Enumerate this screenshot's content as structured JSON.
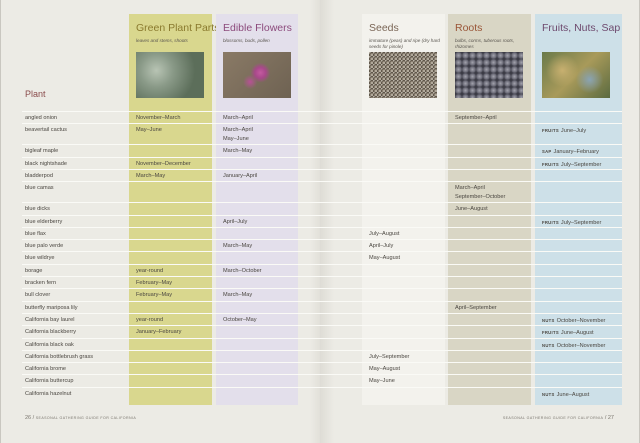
{
  "header": {
    "plant_label": "Plant"
  },
  "columns": [
    {
      "key": "green",
      "title": "Green Plant Parts",
      "subtitle": "leaves and stems, shoots",
      "color": "#d9d78e",
      "title_color": "#8a7a2e",
      "image": "leaves-photo"
    },
    {
      "key": "flowers",
      "title": "Edible Flowers",
      "subtitle": "blossoms, buds, pollen",
      "color": "#e3dfeb",
      "title_color": "#8c4a7c",
      "image": "pink-flower-photo"
    },
    {
      "key": "seeds",
      "title": "Seeds",
      "subtitle": "immature (peas) and ripe (dry hard seeds for pinole)",
      "color": "#f3f2ed",
      "title_color": "#7a6656",
      "image": "seeds-photo"
    },
    {
      "key": "roots",
      "title": "Roots",
      "subtitle": "bulbs, corms, tuberous roots, rhizomes",
      "color": "#d9d6c5",
      "title_color": "#9a5638",
      "image": "roots-photo"
    },
    {
      "key": "fruits",
      "title": "Fruits, Nuts, Sap",
      "subtitle": "",
      "color": "#cde0e8",
      "title_color": "#6e4a6e",
      "image": "fruit-leaves-photo"
    }
  ],
  "rows": [
    {
      "plant": "angled onion",
      "green": "November–March",
      "flowers": "March–April",
      "roots": "September–April"
    },
    {
      "plant": "beavertail cactus",
      "green": "May–June",
      "flowers": "March–April\nMay–June",
      "fruits": {
        "tag": "FRUITS",
        "text": "June–July"
      }
    },
    {
      "plant": "bigleaf maple",
      "flowers": "March–May",
      "fruits": {
        "tag": "SAP",
        "text": "January–February"
      }
    },
    {
      "plant": "black nightshade",
      "green": "November–December",
      "fruits": {
        "tag": "FRUITS",
        "text": "July–September"
      }
    },
    {
      "plant": "bladderpod",
      "green": "March–May",
      "flowers": "January–April"
    },
    {
      "plant": "blue camas",
      "roots": "March–April\nSeptember–October"
    },
    {
      "plant": "blue dicks",
      "roots": "June–August"
    },
    {
      "plant": "blue elderberry",
      "flowers": "April–July",
      "fruits": {
        "tag": "FRUITS",
        "text": "July–September"
      }
    },
    {
      "plant": "blue flax",
      "seeds": "July–August"
    },
    {
      "plant": "blue palo verde",
      "flowers": "March–May",
      "seeds": "April–July"
    },
    {
      "plant": "blue wildrye",
      "seeds": "May–August"
    },
    {
      "plant": "borage",
      "green": "year-round",
      "flowers": "March–October"
    },
    {
      "plant": "bracken fern",
      "green": "February–May"
    },
    {
      "plant": "bull clover",
      "green": "February–May",
      "flowers": "March–May"
    },
    {
      "plant": "butterfly mariposa lily",
      "roots": "April–September"
    },
    {
      "plant": "California bay laurel",
      "green": "year-round",
      "flowers": "October–May",
      "fruits": {
        "tag": "NUTS",
        "text": "October–November"
      }
    },
    {
      "plant": "California blackberry",
      "green": "January–February",
      "fruits": {
        "tag": "FRUITS",
        "text": "June–August"
      }
    },
    {
      "plant": "California black oak",
      "fruits": {
        "tag": "NUTS",
        "text": "October–November"
      }
    },
    {
      "plant": "California bottlebrush grass",
      "seeds": "July–September"
    },
    {
      "plant": "California brome",
      "seeds": "May–August"
    },
    {
      "plant": "California buttercup",
      "seeds": "May–June"
    },
    {
      "plant": "California hazelnut",
      "fruits": {
        "tag": "NUTS",
        "text": "June–August"
      }
    }
  ],
  "footer": {
    "left_page": "26",
    "left_title": "SEASONAL GATHERING GUIDE FOR CALIFORNIA",
    "right_title": "SEASONAL GATHERING GUIDE FOR CALIFORNIA",
    "right_page": "27",
    "separator": "/"
  }
}
